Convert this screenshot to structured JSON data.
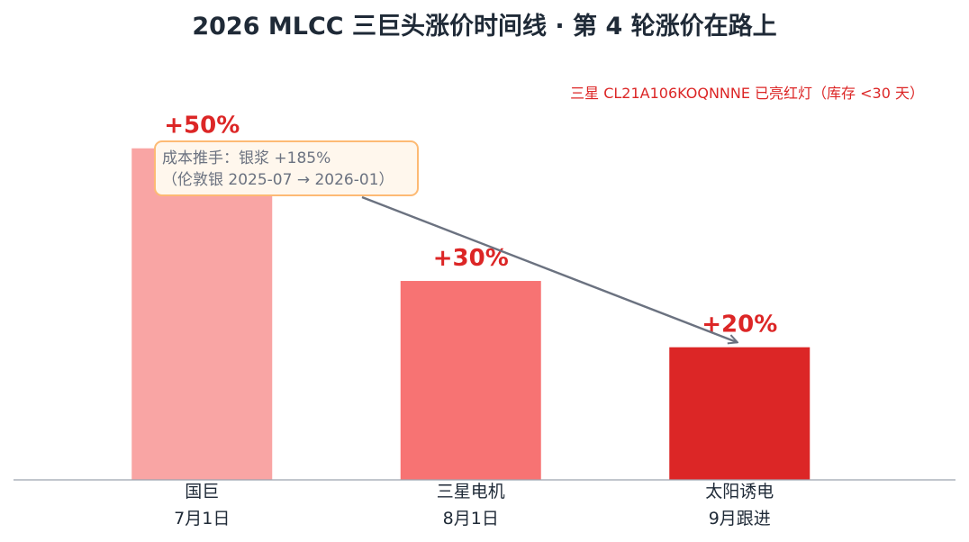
{
  "chart_data": {
    "type": "bar",
    "title": "2026 MLCC 三巨头涨价时间线 · 第 4 轮涨价在路上",
    "subtitle": "三星 CL21A106KOQNNNE 已亮红灯（库存 <30 天）",
    "categories": [
      {
        "name": "国巨",
        "date": "7月1日"
      },
      {
        "name": "三星电机",
        "date": "8月1日"
      },
      {
        "name": "太阳诱电",
        "date": "9月跟进"
      }
    ],
    "values": [
      50,
      30,
      20
    ],
    "value_labels": [
      "+50%",
      "+30%",
      "+20%"
    ],
    "colors": [
      "#f9a5a4",
      "#f77373",
      "#dc2626"
    ],
    "ylim": [
      0,
      52
    ],
    "grid": false,
    "annotation": {
      "line1": "成本推手：银浆 +185%",
      "line2": "（伦敦银 2025-07 → 2026-01）"
    }
  }
}
